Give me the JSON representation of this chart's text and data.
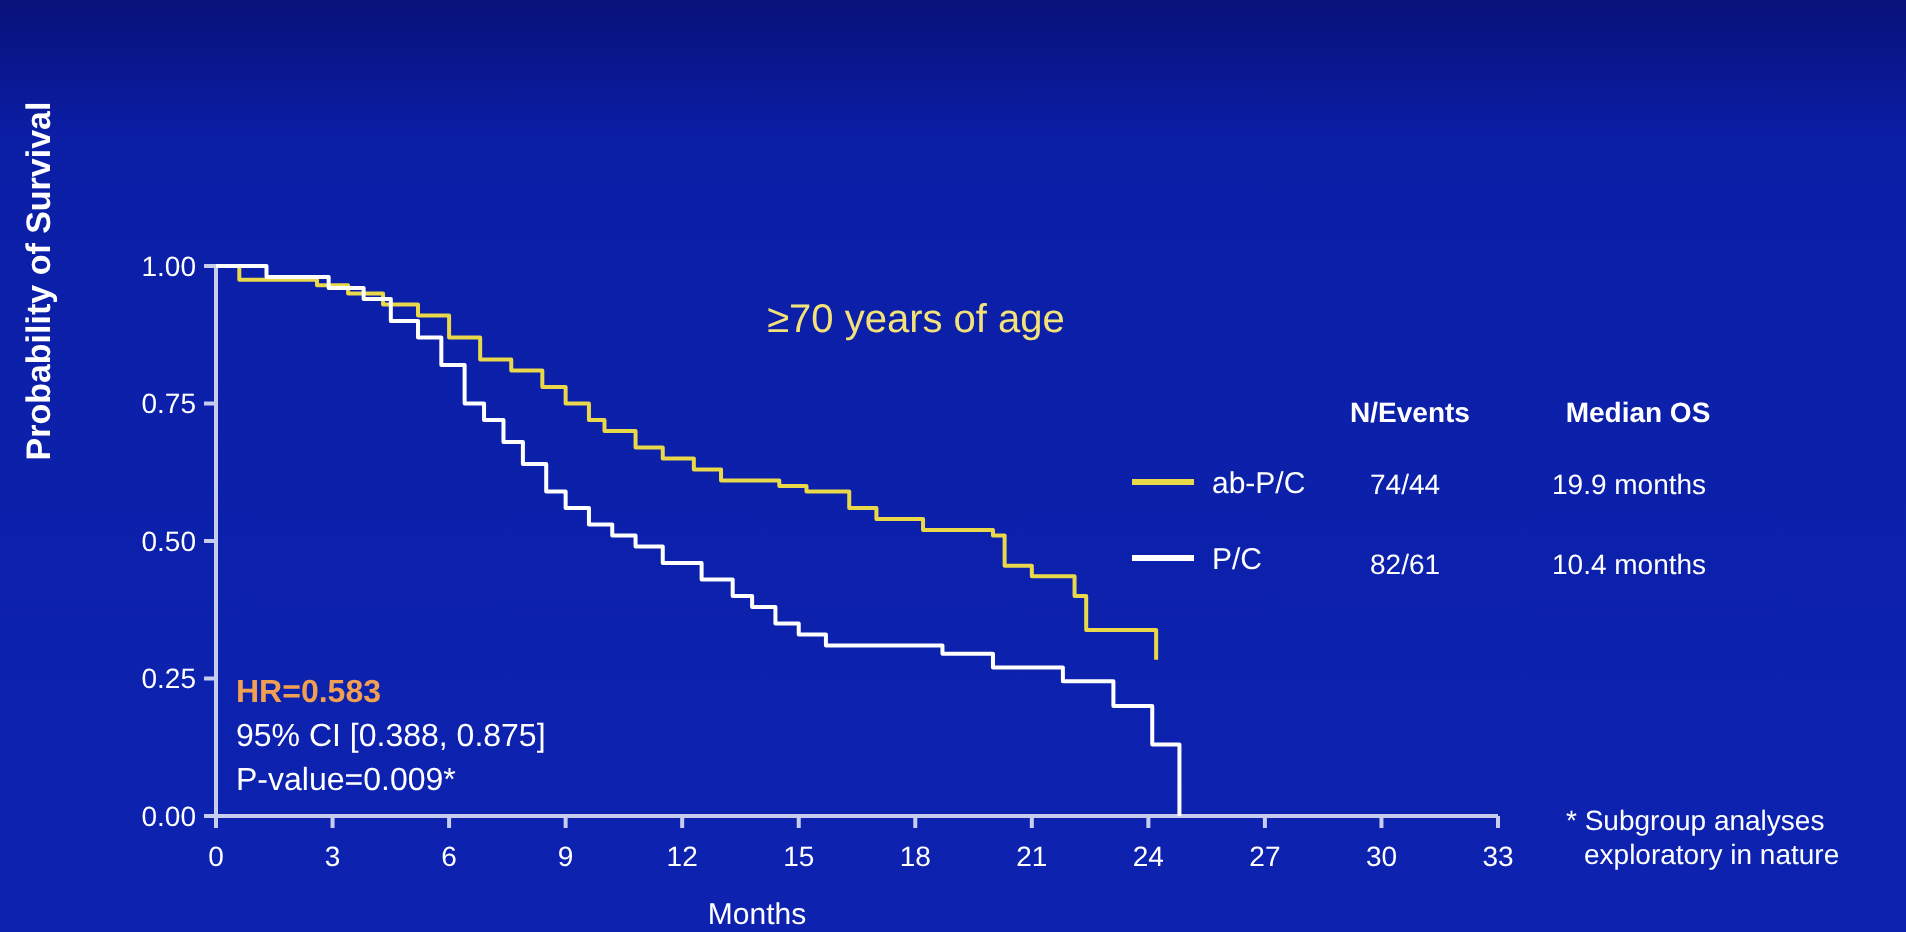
{
  "chart_data": {
    "type": "step",
    "xlabel": "Months",
    "ylabel": "Probability of Survival",
    "xlim": [
      0,
      33
    ],
    "xticks": [
      0,
      3,
      6,
      9,
      12,
      15,
      18,
      21,
      24,
      27,
      30,
      33
    ],
    "ylim": [
      0,
      1
    ],
    "yticks": [
      {
        "value": 0,
        "label": "0.00"
      },
      {
        "value": 0.25,
        "label": "0.25"
      },
      {
        "value": 0.5,
        "label": "0.50"
      },
      {
        "value": 0.75,
        "label": "0.75"
      },
      {
        "value": 1,
        "label": "1.00"
      }
    ],
    "legend": "right",
    "grid": false,
    "line_style": "solid",
    "marker": "none",
    "series": [
      {
        "name": "ab-P/C",
        "color": "#e8d84a",
        "x": [
          0,
          0.6,
          2.6,
          3.4,
          4.3,
          5.2,
          6.0,
          6.8,
          7.6,
          8.4,
          9.0,
          9.6,
          10.0,
          10.8,
          11.5,
          12.3,
          13.0,
          14.5,
          15.2,
          16.3,
          17.0,
          18.2,
          20.0,
          20.3,
          21.0,
          22.1,
          22.4,
          24.2
        ],
        "values": [
          1.0,
          0.975,
          0.965,
          0.95,
          0.93,
          0.91,
          0.87,
          0.83,
          0.81,
          0.78,
          0.75,
          0.72,
          0.7,
          0.67,
          0.65,
          0.63,
          0.61,
          0.6,
          0.59,
          0.56,
          0.54,
          0.52,
          0.51,
          0.455,
          0.436,
          0.4,
          0.338,
          0.284
        ]
      },
      {
        "name": "P/C",
        "color": "#ffffff",
        "x": [
          0,
          1.3,
          2.9,
          3.8,
          4.5,
          5.2,
          5.8,
          6.4,
          6.9,
          7.4,
          7.9,
          8.5,
          9.0,
          9.6,
          10.2,
          10.8,
          11.5,
          12.5,
          13.3,
          13.8,
          14.4,
          15.0,
          15.7,
          18.7,
          20.0,
          21.8,
          23.1,
          24.1,
          24.8
        ],
        "values": [
          1.0,
          0.98,
          0.96,
          0.94,
          0.9,
          0.87,
          0.82,
          0.75,
          0.72,
          0.68,
          0.64,
          0.59,
          0.56,
          0.53,
          0.51,
          0.49,
          0.46,
          0.43,
          0.4,
          0.38,
          0.35,
          0.33,
          0.31,
          0.295,
          0.27,
          0.245,
          0.2,
          0.13,
          0.0
        ]
      }
    ],
    "annotations": [
      "≥70 years of age",
      "HR=0.583",
      "95% CI [0.388, 0.875]",
      "P-value=0.009*",
      "N/Events",
      "Median OS",
      "74/44",
      "19.9 months",
      "82/61",
      "10.4 months",
      "* Subgroup analyses exploratory in nature"
    ]
  }
}
